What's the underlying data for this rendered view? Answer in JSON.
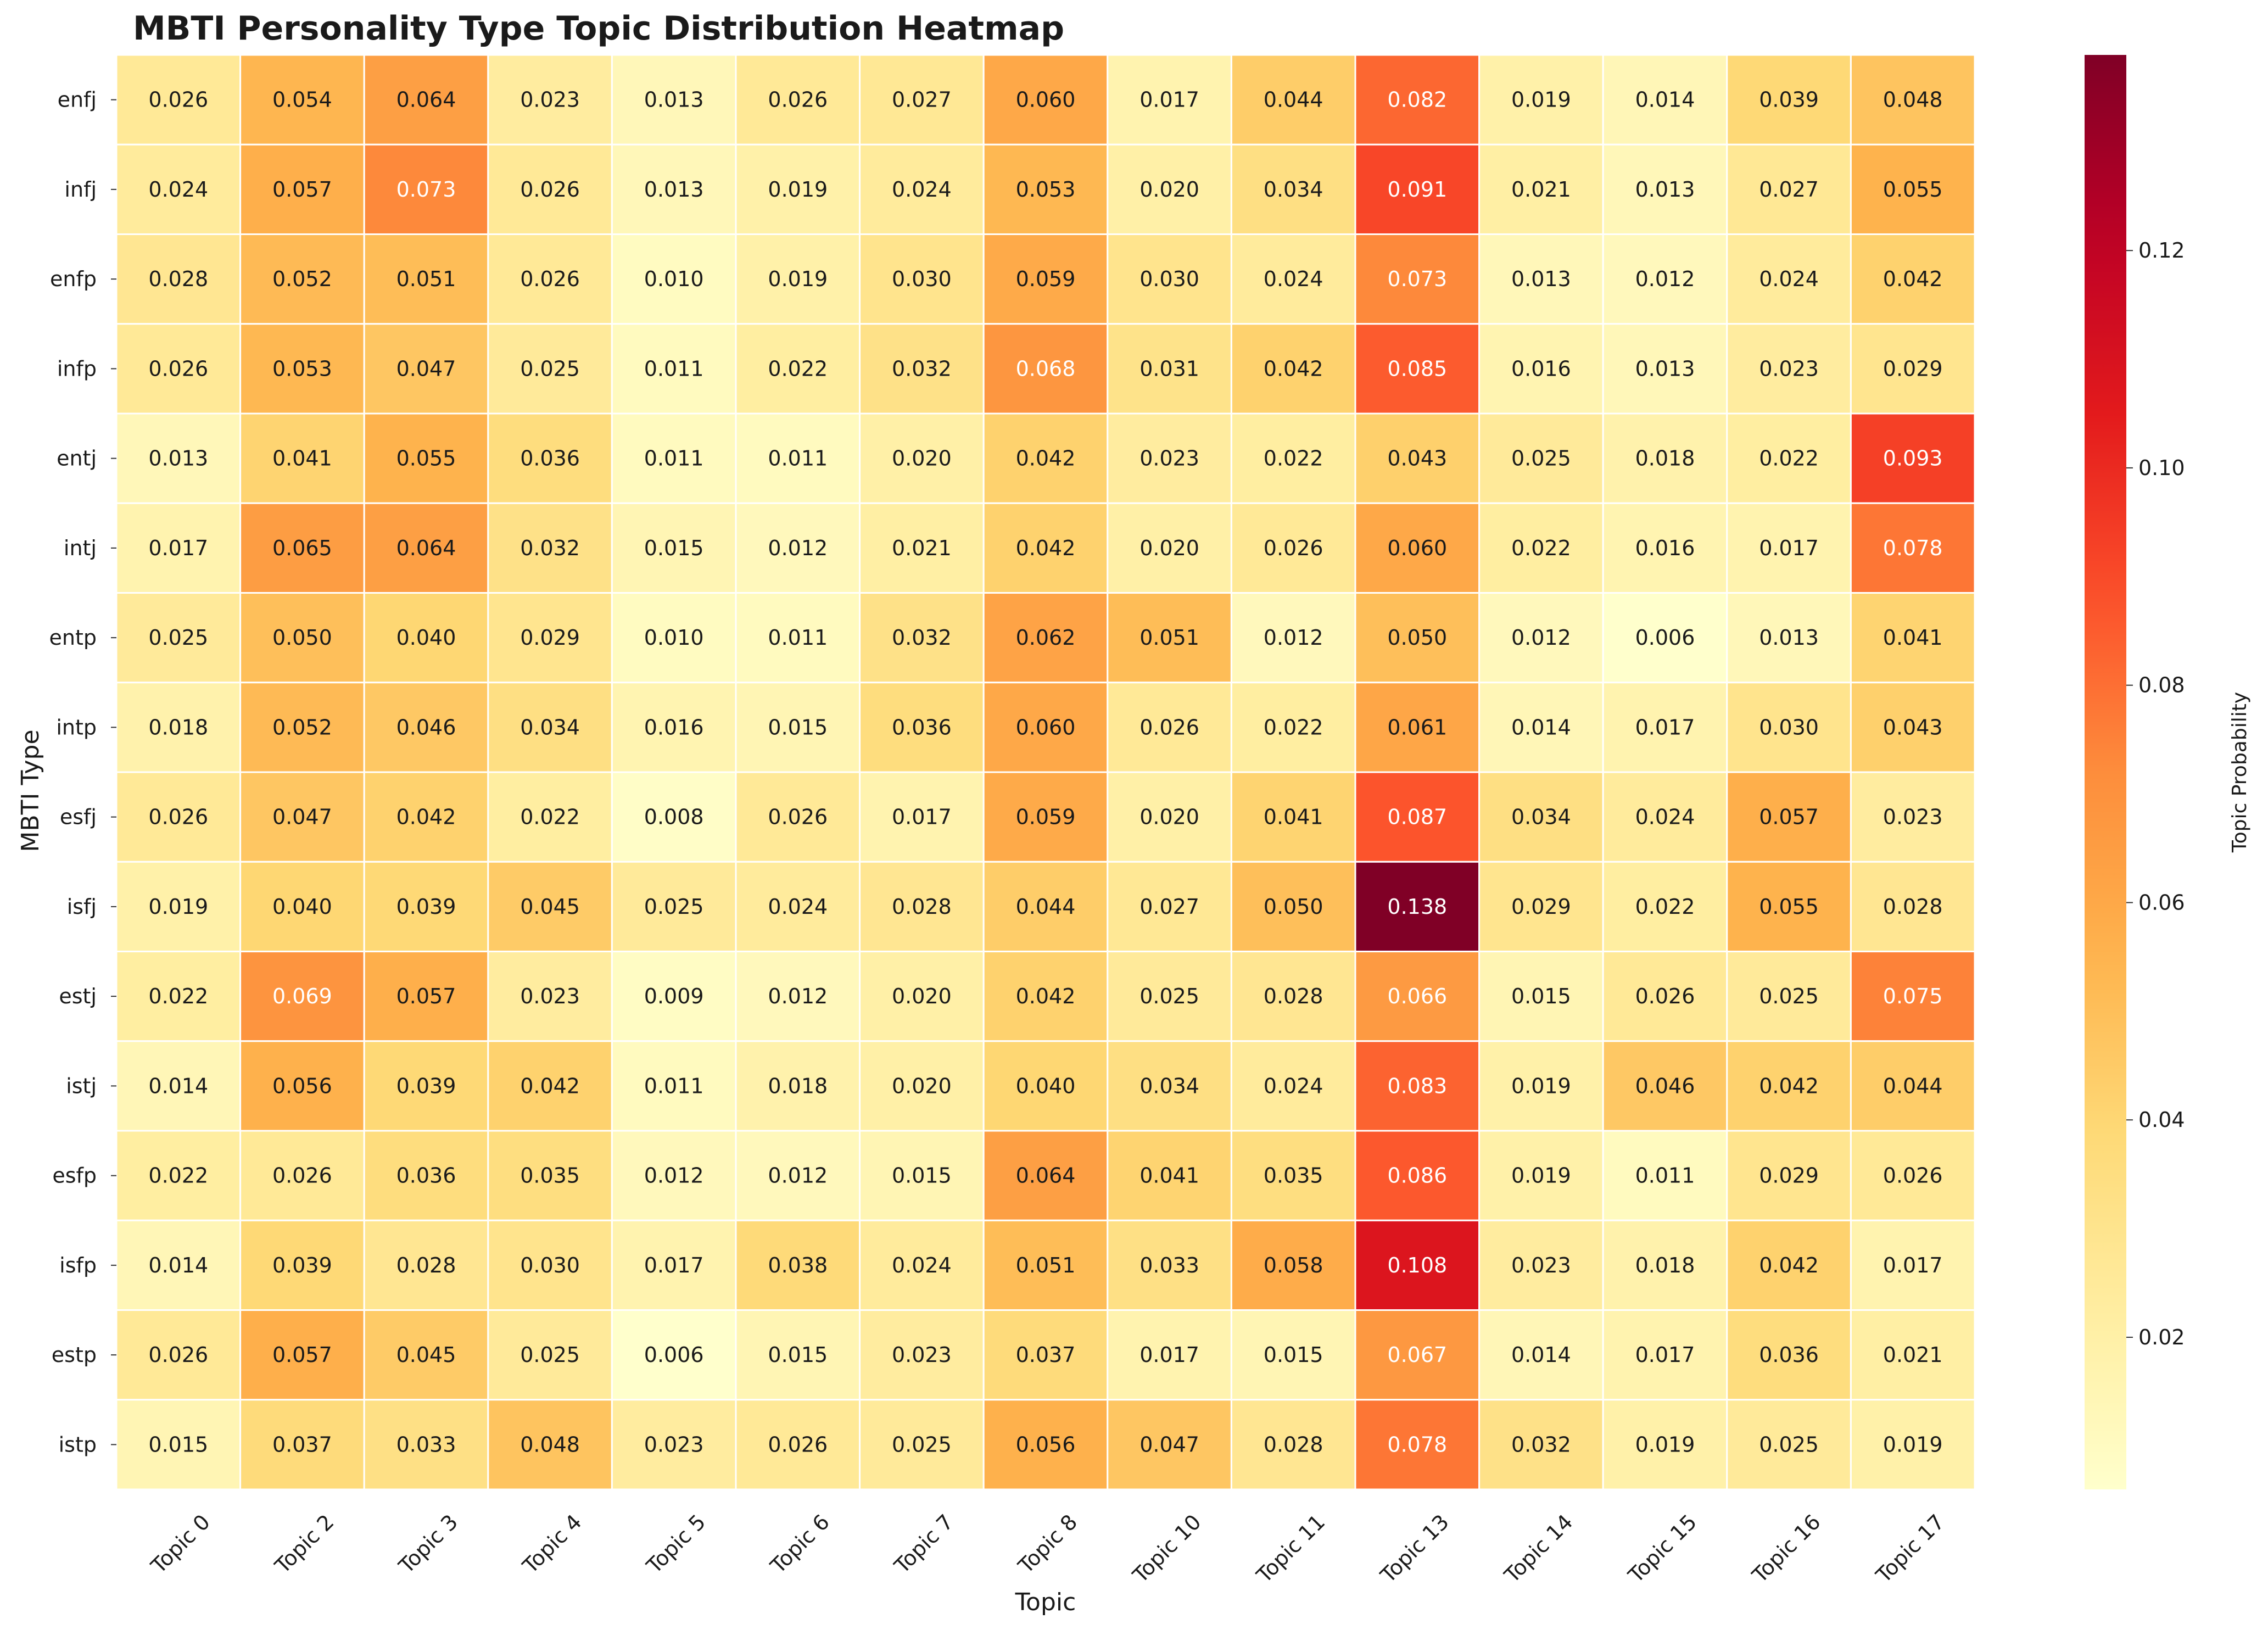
{
  "chart_data": {
    "type": "heatmap",
    "title": "MBTI Personality Type Topic Distribution Heatmap",
    "xlabel": "Topic",
    "ylabel": "MBTI Type",
    "colorbar_label": "Topic Probability",
    "colormap": "YlOrRd",
    "vmin": 0.006,
    "vmax": 0.138,
    "colorbar_ticks": [
      0.02,
      0.04,
      0.06,
      0.08,
      0.1,
      0.12
    ],
    "colorbar_tick_labels": [
      "0.02",
      "0.04",
      "0.06",
      "0.08",
      "0.10",
      "0.12"
    ],
    "x_categories": [
      "Topic 0",
      "Topic 2",
      "Topic 3",
      "Topic 4",
      "Topic 5",
      "Topic 6",
      "Topic 7",
      "Topic 8",
      "Topic 10",
      "Topic 11",
      "Topic 13",
      "Topic 14",
      "Topic 15",
      "Topic 16",
      "Topic 17"
    ],
    "y_categories": [
      "enfj",
      "infj",
      "enfp",
      "infp",
      "entj",
      "intj",
      "entp",
      "intp",
      "esfj",
      "isfj",
      "estj",
      "istj",
      "esfp",
      "isfp",
      "estp",
      "istp"
    ],
    "values": [
      [
        0.026,
        0.054,
        0.064,
        0.023,
        0.013,
        0.026,
        0.027,
        0.06,
        0.017,
        0.044,
        0.082,
        0.019,
        0.014,
        0.039,
        0.048
      ],
      [
        0.024,
        0.057,
        0.073,
        0.026,
        0.013,
        0.019,
        0.024,
        0.053,
        0.02,
        0.034,
        0.091,
        0.021,
        0.013,
        0.027,
        0.055
      ],
      [
        0.028,
        0.052,
        0.051,
        0.026,
        0.01,
        0.019,
        0.03,
        0.059,
        0.03,
        0.024,
        0.073,
        0.013,
        0.012,
        0.024,
        0.042
      ],
      [
        0.026,
        0.053,
        0.047,
        0.025,
        0.011,
        0.022,
        0.032,
        0.068,
        0.031,
        0.042,
        0.085,
        0.016,
        0.013,
        0.023,
        0.029
      ],
      [
        0.013,
        0.041,
        0.055,
        0.036,
        0.011,
        0.011,
        0.02,
        0.042,
        0.023,
        0.022,
        0.043,
        0.025,
        0.018,
        0.022,
        0.093
      ],
      [
        0.017,
        0.065,
        0.064,
        0.032,
        0.015,
        0.012,
        0.021,
        0.042,
        0.02,
        0.026,
        0.06,
        0.022,
        0.016,
        0.017,
        0.078
      ],
      [
        0.025,
        0.05,
        0.04,
        0.029,
        0.01,
        0.011,
        0.032,
        0.062,
        0.051,
        0.012,
        0.05,
        0.012,
        0.006,
        0.013,
        0.041
      ],
      [
        0.018,
        0.052,
        0.046,
        0.034,
        0.016,
        0.015,
        0.036,
        0.06,
        0.026,
        0.022,
        0.061,
        0.014,
        0.017,
        0.03,
        0.043
      ],
      [
        0.026,
        0.047,
        0.042,
        0.022,
        0.008,
        0.026,
        0.017,
        0.059,
        0.02,
        0.041,
        0.087,
        0.034,
        0.024,
        0.057,
        0.023
      ],
      [
        0.019,
        0.04,
        0.039,
        0.045,
        0.025,
        0.024,
        0.028,
        0.044,
        0.027,
        0.05,
        0.138,
        0.029,
        0.022,
        0.055,
        0.028
      ],
      [
        0.022,
        0.069,
        0.057,
        0.023,
        0.009,
        0.012,
        0.02,
        0.042,
        0.025,
        0.028,
        0.066,
        0.015,
        0.026,
        0.025,
        0.075
      ],
      [
        0.014,
        0.056,
        0.039,
        0.042,
        0.011,
        0.018,
        0.02,
        0.04,
        0.034,
        0.024,
        0.083,
        0.019,
        0.046,
        0.042,
        0.044
      ],
      [
        0.022,
        0.026,
        0.036,
        0.035,
        0.012,
        0.012,
        0.015,
        0.064,
        0.041,
        0.035,
        0.086,
        0.019,
        0.011,
        0.029,
        0.026
      ],
      [
        0.014,
        0.039,
        0.028,
        0.03,
        0.017,
        0.038,
        0.024,
        0.051,
        0.033,
        0.058,
        0.108,
        0.023,
        0.018,
        0.042,
        0.017
      ],
      [
        0.026,
        0.057,
        0.045,
        0.025,
        0.006,
        0.015,
        0.023,
        0.037,
        0.017,
        0.015,
        0.067,
        0.014,
        0.017,
        0.036,
        0.021
      ],
      [
        0.015,
        0.037,
        0.033,
        0.048,
        0.023,
        0.026,
        0.025,
        0.056,
        0.047,
        0.028,
        0.078,
        0.032,
        0.019,
        0.025,
        0.019
      ]
    ],
    "value_format": "3 decimals",
    "colors": {
      "cell_border": "#ffffff",
      "text_dark": "#1a1a1a",
      "text_light": "#ffffff"
    }
  }
}
